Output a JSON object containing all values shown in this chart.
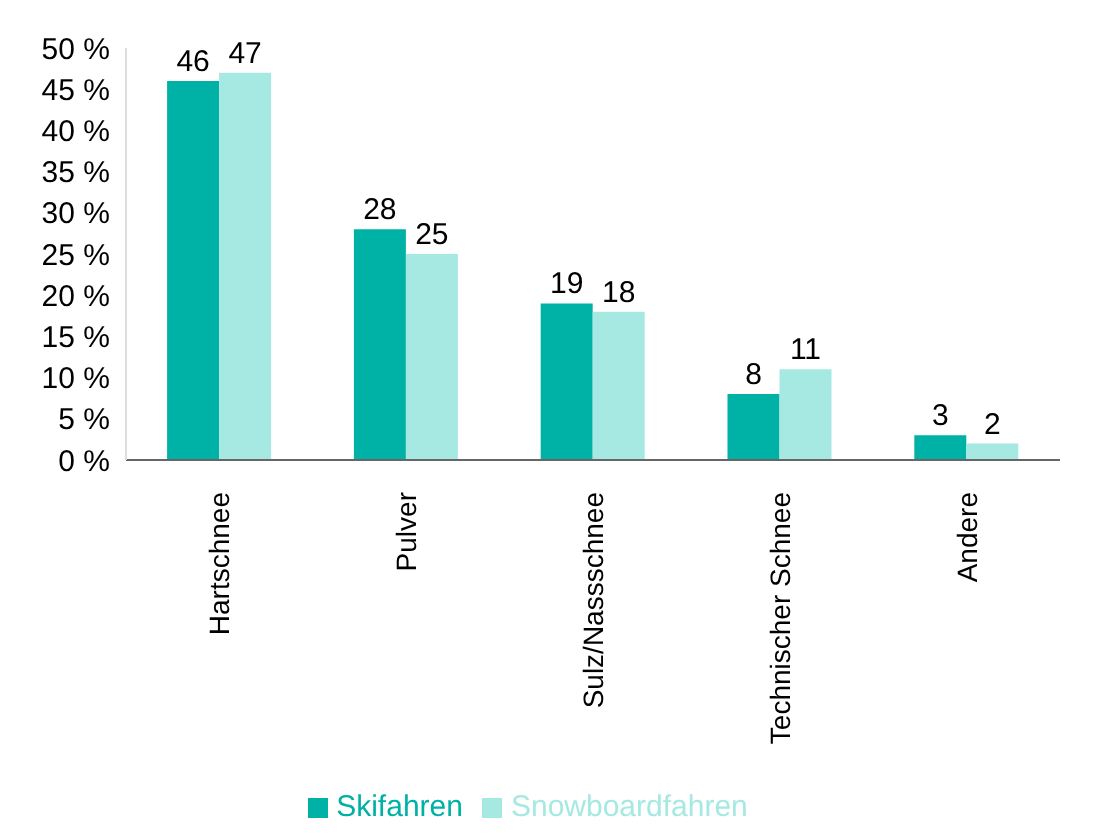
{
  "chart_data": {
    "type": "bar",
    "categories": [
      "Hartschnee",
      "Pulver",
      "Sulz/Nassschnee",
      "Technischer Schnee",
      "Andere"
    ],
    "series": [
      {
        "name": "Skifahren",
        "color": "#00b2a5",
        "values": [
          46,
          28,
          19,
          8,
          3
        ]
      },
      {
        "name": "Snowboardfahren",
        "color": "#a6e9e3",
        "values": [
          47,
          25,
          18,
          11,
          2
        ]
      }
    ],
    "ylim": [
      0,
      50
    ],
    "yticks": [
      {
        "value": 0,
        "label": "0 %"
      },
      {
        "value": 5,
        "label": "5 %"
      },
      {
        "value": 10,
        "label": "10 %"
      },
      {
        "value": 15,
        "label": "15 %"
      },
      {
        "value": 20,
        "label": "20 %"
      },
      {
        "value": 25,
        "label": "25 %"
      },
      {
        "value": 30,
        "label": "30 %"
      },
      {
        "value": 35,
        "label": "35 %"
      },
      {
        "value": 40,
        "label": "40 %"
      },
      {
        "value": 45,
        "label": "45 %"
      },
      {
        "value": 50,
        "label": "50 %"
      }
    ],
    "grid": false,
    "legend": "bottom",
    "data_labels": true
  }
}
